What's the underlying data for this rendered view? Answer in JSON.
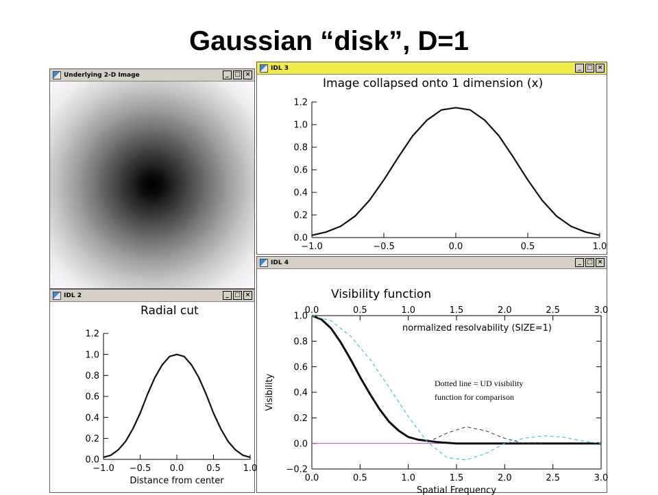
{
  "slide": {
    "title": "Gaussian “disk”, D=1"
  },
  "windows": {
    "image": {
      "title": "Underlying 2-D Image",
      "icon": "idl-app-icon"
    },
    "collapsed": {
      "title": "IDL 3"
    },
    "radial": {
      "title": "IDL 2"
    },
    "visibility": {
      "title": "IDL 4"
    }
  },
  "window_buttons": {
    "minimize": "_",
    "maximize": "□",
    "close": "×"
  },
  "annotation": {
    "line1": "Dotted line = UD visibility",
    "line2": "function for comparison"
  },
  "colors": {
    "titlebar": "#d4d0c8",
    "titlebar_active": "#f2ec4a",
    "gaussian_curve": "#0d0d0d",
    "ud_curve": "#3cc8e0",
    "baseline": "#c040c0"
  },
  "chart_data": [
    {
      "type": "line",
      "title": "Image collapsed onto 1 dimension (x)",
      "xlabel": "",
      "ylabel": "",
      "xlim": [
        -1.0,
        1.0
      ],
      "ylim": [
        0.0,
        1.2
      ],
      "xticks": [
        "−1.0",
        "−0.5",
        "0.0",
        "0.5",
        "1.0"
      ],
      "yticks": [
        "0.0",
        "0.2",
        "0.4",
        "0.6",
        "0.8",
        "1.0",
        "1.2"
      ],
      "series": [
        {
          "x": [
            -1.0,
            -0.9,
            -0.8,
            -0.7,
            -0.6,
            -0.5,
            -0.4,
            -0.3,
            -0.2,
            -0.1,
            0.0,
            0.1,
            0.2,
            0.3,
            0.4,
            0.5,
            0.6,
            0.7,
            0.8,
            0.9,
            1.0
          ],
          "y": [
            0.02,
            0.05,
            0.1,
            0.19,
            0.33,
            0.51,
            0.71,
            0.9,
            1.04,
            1.13,
            1.15,
            1.13,
            1.04,
            0.9,
            0.71,
            0.51,
            0.33,
            0.19,
            0.1,
            0.05,
            0.02
          ]
        }
      ]
    },
    {
      "type": "line",
      "title": "Radial cut",
      "xlabel": "Distance from center",
      "ylabel": "",
      "xlim": [
        -1.0,
        1.0
      ],
      "ylim": [
        0.0,
        1.2
      ],
      "xticks": [
        "−1.0",
        "−0.5",
        "0.0",
        "0.5",
        "1.0"
      ],
      "yticks": [
        "0.0",
        "0.2",
        "0.4",
        "0.6",
        "0.8",
        "1.0",
        "1.2"
      ],
      "series": [
        {
          "x": [
            -1.0,
            -0.9,
            -0.8,
            -0.7,
            -0.6,
            -0.5,
            -0.4,
            -0.3,
            -0.2,
            -0.1,
            0.0,
            0.1,
            0.2,
            0.3,
            0.4,
            0.5,
            0.6,
            0.7,
            0.8,
            0.9,
            1.0
          ],
          "y": [
            0.02,
            0.04,
            0.09,
            0.17,
            0.29,
            0.44,
            0.62,
            0.78,
            0.9,
            0.98,
            1.0,
            0.98,
            0.9,
            0.78,
            0.62,
            0.44,
            0.29,
            0.17,
            0.09,
            0.04,
            0.02
          ]
        }
      ]
    },
    {
      "type": "line",
      "title": "Visibility function",
      "xlabel": "Spatial Frequency",
      "ylabel": "Visibility",
      "top_axis_label": "normalized resolvability (SIZE=1)",
      "xlim": [
        0.0,
        3.0
      ],
      "ylim": [
        -0.2,
        1.0
      ],
      "xticks": [
        "0.0",
        "0.5",
        "1.0",
        "1.5",
        "2.0",
        "2.5",
        "3.0"
      ],
      "yticks": [
        "−0.2",
        "0.0",
        "0.2",
        "0.4",
        "0.6",
        "0.8",
        "1.0"
      ],
      "grid": false,
      "series": [
        {
          "style": "solid",
          "x": [
            0.0,
            0.1,
            0.2,
            0.3,
            0.4,
            0.5,
            0.6,
            0.7,
            0.8,
            0.9,
            1.0,
            1.1,
            1.2,
            1.3,
            1.5,
            2.0,
            2.5,
            3.0
          ],
          "y": [
            1.0,
            0.97,
            0.9,
            0.79,
            0.66,
            0.52,
            0.39,
            0.27,
            0.17,
            0.1,
            0.05,
            0.03,
            0.02,
            0.01,
            0.0,
            0.0,
            0.0,
            0.0
          ]
        },
        {
          "style": "dashed",
          "x": [
            0.0,
            0.2,
            0.4,
            0.6,
            0.8,
            1.0,
            1.2,
            1.4,
            1.6,
            1.8,
            2.0,
            2.2,
            2.4,
            2.6,
            2.8,
            3.0
          ],
          "y": [
            1.0,
            0.96,
            0.84,
            0.66,
            0.44,
            0.21,
            0.01,
            -0.11,
            -0.13,
            -0.08,
            0.0,
            0.04,
            0.06,
            0.05,
            0.02,
            0.0
          ]
        },
        {
          "style": "dashed-dark",
          "x": [
            1.2,
            1.4,
            1.6,
            1.8,
            2.0,
            2.2,
            2.4
          ],
          "y": [
            0.01,
            0.08,
            0.13,
            0.1,
            0.04,
            0.0,
            0.0
          ]
        }
      ],
      "baseline": 0.0
    }
  ]
}
